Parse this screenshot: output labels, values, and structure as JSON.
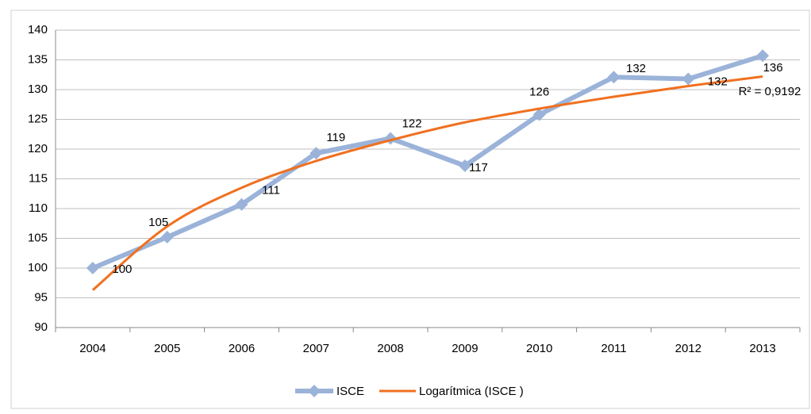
{
  "chart_data": {
    "type": "line",
    "categories": [
      "2004",
      "2005",
      "2006",
      "2007",
      "2008",
      "2009",
      "2010",
      "2011",
      "2012",
      "2013"
    ],
    "series": [
      {
        "name": "ISCE",
        "color": "#9bb3d9",
        "values": [
          100,
          105.2,
          110.7,
          119.3,
          121.8,
          117.2,
          125.8,
          132.1,
          131.8,
          135.7
        ],
        "value_labels": [
          "100",
          "105",
          "111",
          "119",
          "122",
          "117",
          "126",
          "132",
          "132",
          "136"
        ]
      },
      {
        "name": "Logarítmica (ISCE )",
        "color": "#f07020",
        "values": [
          96.3,
          107,
          113.5,
          118,
          121.5,
          124.5,
          126.8,
          128.8,
          130.6,
          132.2
        ]
      }
    ],
    "annotation": "R² = 0,9192",
    "ylim": [
      90,
      140
    ],
    "yticks": [
      90,
      95,
      100,
      105,
      110,
      115,
      120,
      125,
      130,
      135,
      140
    ],
    "grid": true
  }
}
